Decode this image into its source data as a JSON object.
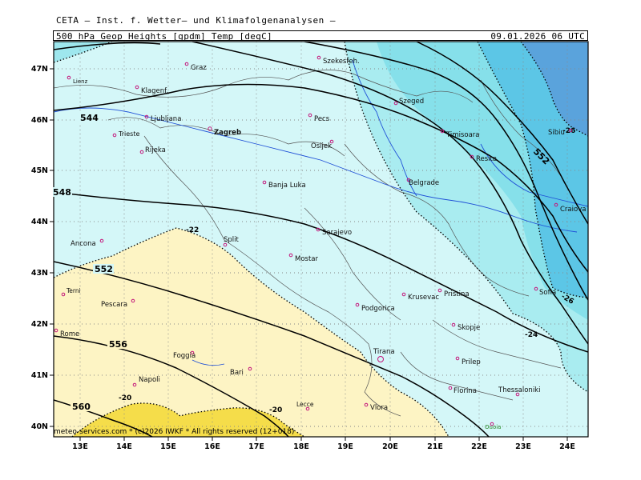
{
  "header": {
    "top_title": "CETA — Inst. f. Wetter— und Klimafolgenanalysen —",
    "left_label": "500 hPa Geop Heights [gpdm] Temp [degC]",
    "right_label": "09.01.2026 06 UTC"
  },
  "footer": "meteo-services.com * (c)2026 IWKF * All rights reserved (12+018)",
  "axes": {
    "lon_ticks": [
      "13E",
      "14E",
      "15E",
      "16E",
      "17E",
      "18E",
      "19E",
      "20E",
      "21E",
      "22E",
      "23E",
      "24E"
    ],
    "lat_ticks": [
      "47N",
      "46N",
      "45N",
      "44N",
      "43N",
      "42N",
      "41N",
      "40N"
    ]
  },
  "cities": [
    {
      "name": "Graz"
    },
    {
      "name": "Szekesfeh."
    },
    {
      "name": "Lienz"
    },
    {
      "name": "Klagenf."
    },
    {
      "name": "Ljubljana"
    },
    {
      "name": "Zagreb"
    },
    {
      "name": "Pecs"
    },
    {
      "name": "Szeged"
    },
    {
      "name": "Trieste"
    },
    {
      "name": "Rijeka"
    },
    {
      "name": "Osijek"
    },
    {
      "name": "Timisoara"
    },
    {
      "name": "Resita"
    },
    {
      "name": "Sibiu"
    },
    {
      "name": "Banja Luka"
    },
    {
      "name": "Belgrade"
    },
    {
      "name": "Craiova"
    },
    {
      "name": "Sarajevo"
    },
    {
      "name": "Ancona"
    },
    {
      "name": "Split"
    },
    {
      "name": "Mostar"
    },
    {
      "name": "Terni"
    },
    {
      "name": "Pescara"
    },
    {
      "name": "Podgorica"
    },
    {
      "name": "Krusevac"
    },
    {
      "name": "Pristina"
    },
    {
      "name": "Sofia"
    },
    {
      "name": "Rome"
    },
    {
      "name": "Skopje"
    },
    {
      "name": "Tirana"
    },
    {
      "name": "Foggia"
    },
    {
      "name": "Prilep"
    },
    {
      "name": "Bari"
    },
    {
      "name": "Napoli"
    },
    {
      "name": "Florina"
    },
    {
      "name": "Thessaloniki"
    },
    {
      "name": "Vlora"
    },
    {
      "name": "Lecce"
    },
    {
      "name": "Ouoia"
    }
  ],
  "contour_labels": {
    "geopotential": [
      "544",
      "548",
      "552",
      "556",
      "560",
      "552"
    ],
    "temperature": [
      "-22",
      "-20",
      "-20",
      "-24",
      "-26",
      "-26"
    ]
  },
  "colors": {
    "ocean_light": "#d4f7f8",
    "t_cold1": "#a9ecf0",
    "t_cold2": "#6fd6e6",
    "t_cold3": "#5cc6e6",
    "t_cold4": "#5aa3dc",
    "t_warm1": "#fdf4c4",
    "t_warm2": "#f5dd4a"
  }
}
